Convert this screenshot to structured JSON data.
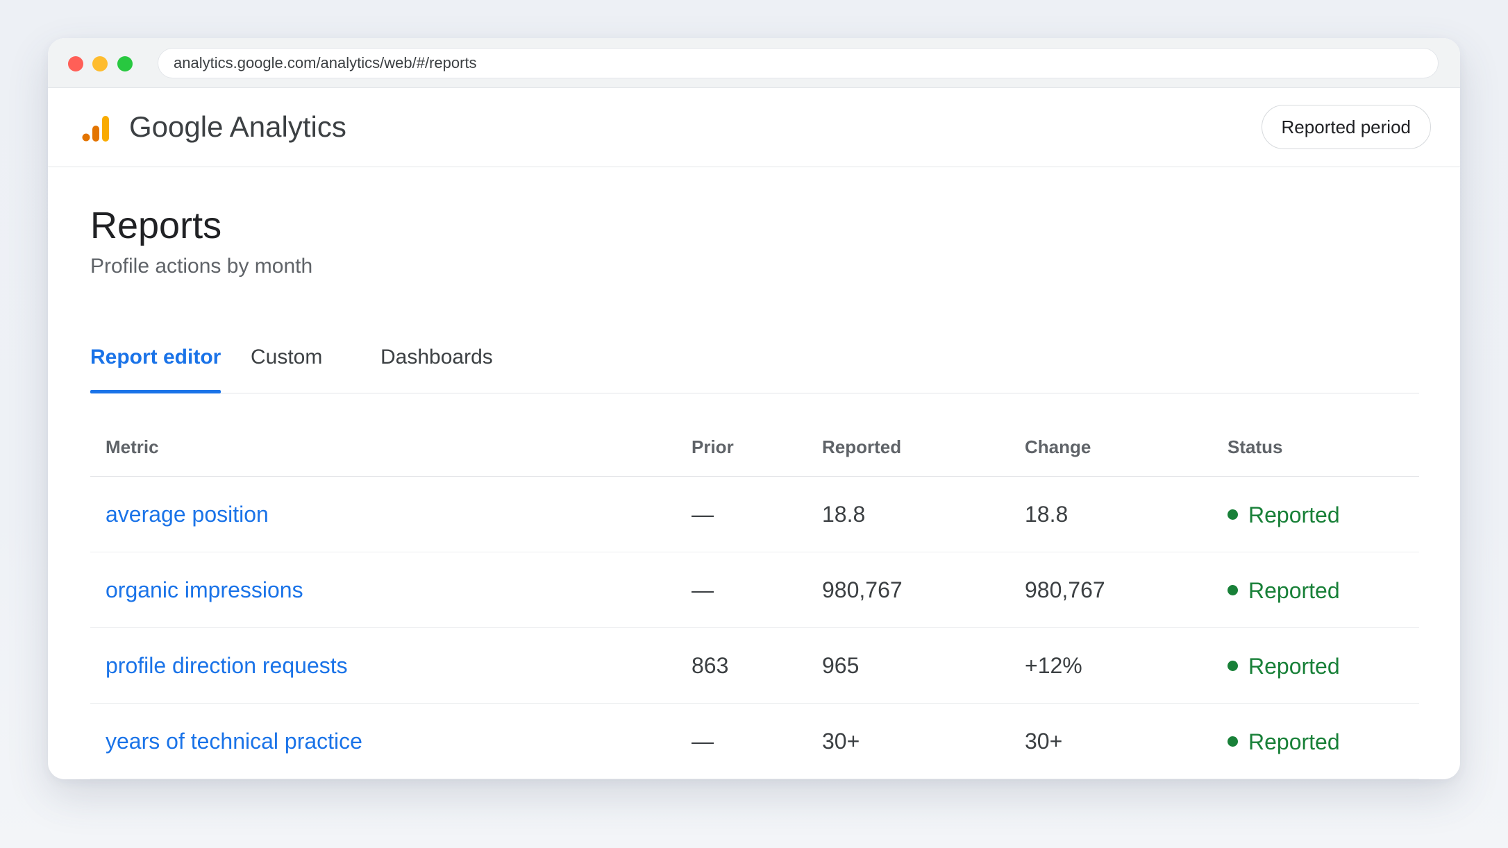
{
  "browser": {
    "url": "analytics.google.com/analytics/web/#/reports"
  },
  "header": {
    "brand": "Google Analytics",
    "logo_icon": "google-analytics-bars-icon",
    "period_button": "Reported period"
  },
  "page": {
    "title": "Reports",
    "subtitle": "Profile actions by month"
  },
  "tabs": [
    {
      "label": "Report editor",
      "active": true
    },
    {
      "label": "Custom",
      "active": false
    },
    {
      "label": "Dashboards",
      "active": false
    }
  ],
  "table": {
    "columns": [
      "Metric",
      "Prior",
      "Reported",
      "Change",
      "Status"
    ],
    "rows": [
      {
        "metric": "average position",
        "prior": "—",
        "reported": "18.8",
        "change": "18.8",
        "status": "Reported"
      },
      {
        "metric": "organic impressions",
        "prior": "—",
        "reported": "980,767",
        "change": "980,767",
        "status": "Reported"
      },
      {
        "metric": "profile direction requests",
        "prior": "863",
        "reported": "965",
        "change": "+12%",
        "status": "Reported"
      },
      {
        "metric": "years of technical practice",
        "prior": "—",
        "reported": "30+",
        "change": "30+",
        "status": "Reported"
      }
    ]
  },
  "colors": {
    "accent": "#1a73e8",
    "status_green": "#188038",
    "logo_orange": "#f9ab00",
    "logo_dark_orange": "#e37400"
  }
}
